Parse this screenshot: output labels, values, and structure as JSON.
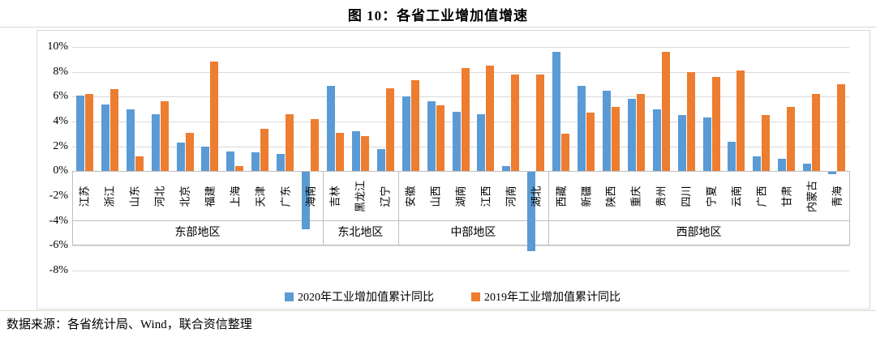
{
  "title": "图 10：各省工业增加值增速",
  "source_note": "数据来源：各省统计局、Wind，联合资信整理",
  "colors": {
    "series2020": "#5B9BD5",
    "series2019": "#ED7D31",
    "gridline": "#D9D9D9",
    "table_border": "#BFBFBF"
  },
  "chart_data": {
    "type": "bar",
    "title": "图 10：各省工业增加值增速",
    "xlabel": "",
    "ylabel": "",
    "y_axis": {
      "min": -8,
      "max": 10,
      "step": 2,
      "unit": "%"
    },
    "grid": true,
    "legend_position": "bottom",
    "categories": [
      "江苏",
      "浙江",
      "山东",
      "河北",
      "北京",
      "福建",
      "上海",
      "天津",
      "广东",
      "海南",
      "吉林",
      "黑龙江",
      "辽宁",
      "安徽",
      "山西",
      "湖南",
      "江西",
      "河南",
      "湖北",
      "西藏",
      "新疆",
      "陕西",
      "重庆",
      "贵州",
      "四川",
      "宁夏",
      "云南",
      "广西",
      "甘肃",
      "内蒙古",
      "青海"
    ],
    "groups": [
      {
        "label": "东部地区",
        "count": 10
      },
      {
        "label": "东北地区",
        "count": 3
      },
      {
        "label": "中部地区",
        "count": 6
      },
      {
        "label": "西部地区",
        "count": 12
      }
    ],
    "series": [
      {
        "name": "2020年工业增加值累计同比",
        "color": "#5B9BD5",
        "values": [
          6.1,
          5.4,
          5.0,
          4.6,
          2.3,
          2.0,
          1.6,
          1.5,
          1.4,
          -4.6,
          6.9,
          3.2,
          1.8,
          6.0,
          5.6,
          4.8,
          4.6,
          0.4,
          -6.4,
          9.6,
          6.9,
          6.5,
          5.8,
          5.0,
          4.5,
          4.3,
          2.4,
          1.2,
          1.0,
          0.6,
          -0.2
        ]
      },
      {
        "name": "2019年工业增加值累计同比",
        "color": "#ED7D31",
        "values": [
          6.2,
          6.6,
          1.2,
          5.6,
          3.1,
          8.8,
          0.4,
          3.4,
          4.6,
          4.2,
          3.1,
          2.8,
          6.7,
          7.3,
          5.3,
          8.3,
          8.5,
          7.8,
          7.8,
          3.0,
          4.7,
          5.2,
          6.2,
          9.6,
          8.0,
          7.6,
          8.1,
          4.5,
          5.2,
          6.2,
          7.0
        ]
      }
    ]
  }
}
